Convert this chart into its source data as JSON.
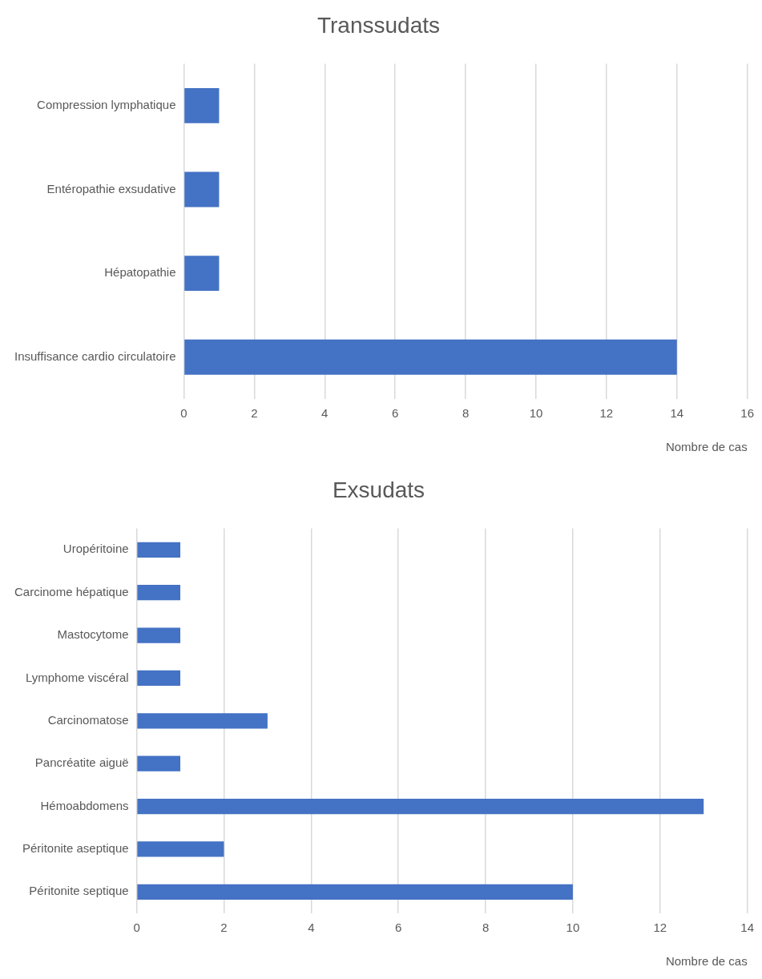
{
  "chart_data": [
    {
      "type": "bar",
      "orientation": "horizontal",
      "title": "Transsudats",
      "xlabel": "Nombre de cas",
      "categories": [
        "Compression lymphatique",
        "Entéropathie exsudative",
        "Hépatopathie",
        "Insuffisance cardio circulatoire"
      ],
      "values": [
        1,
        1,
        1,
        14
      ],
      "color": "#4472c4",
      "xlim": [
        0,
        16
      ],
      "xticks": [
        0,
        2,
        4,
        6,
        8,
        10,
        12,
        14,
        16
      ],
      "grid": "x",
      "legend": false
    },
    {
      "type": "bar",
      "orientation": "horizontal",
      "title": "Exsudats",
      "xlabel": "Nombre de cas",
      "categories": [
        "Uropéritoine",
        "Carcinome hépatique",
        "Mastocytome",
        "Lymphome viscéral",
        "Carcinomatose",
        "Pancréatite aiguë",
        "Hémoabdomens",
        "Péritonite aseptique",
        "Péritonite septique"
      ],
      "values": [
        1,
        1,
        1,
        1,
        3,
        1,
        13,
        2,
        10
      ],
      "color": "#4472c4",
      "xlim": [
        0,
        14
      ],
      "xticks": [
        0,
        2,
        4,
        6,
        8,
        10,
        12,
        14
      ],
      "grid": "x",
      "legend": false
    }
  ]
}
